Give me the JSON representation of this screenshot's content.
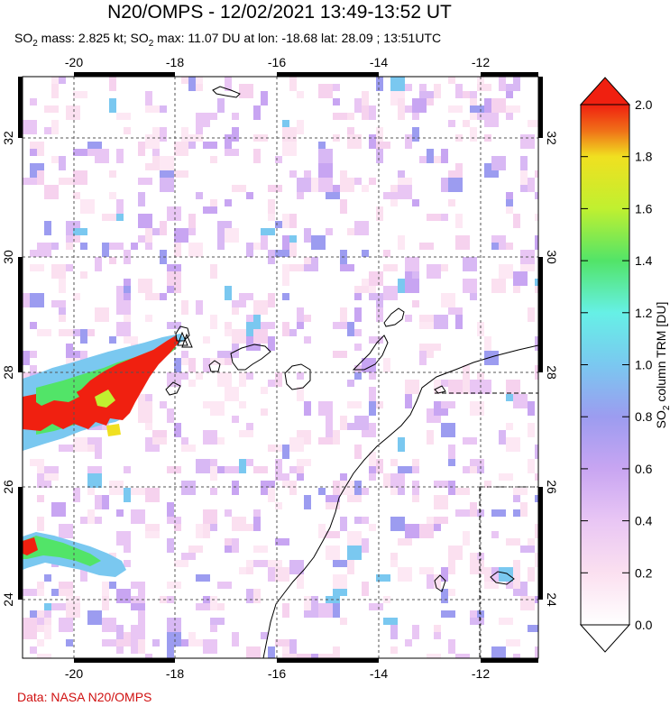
{
  "title": "N20/OMPS - 12/02/2021 13:49-13:52 UT",
  "subtitle": {
    "mass_prefix": "SO",
    "mass_sub": "2",
    "mass_text": " mass: 2.825 kt; SO",
    "max_sub": "2",
    "max_text": " max: 11.07 DU at lon: -18.68 lat: 28.09 ; 13:51UTC"
  },
  "credit": "Data: NASA N20/OMPS",
  "map": {
    "lon_ticks": [
      "-20",
      "-18",
      "-16",
      "-14",
      "-12"
    ],
    "lat_ticks": [
      "24",
      "26",
      "28",
      "30",
      "32"
    ],
    "marker": "volcano-triangle",
    "colors": {
      "coast": "#000000",
      "grid": "#555555"
    }
  },
  "colorbar": {
    "label_prefix": "SO",
    "label_sub": "2",
    "label_text": " column TRM [DU]",
    "ticks": [
      "0.0",
      "0.2",
      "0.4",
      "0.6",
      "0.8",
      "1.0",
      "1.2",
      "1.4",
      "1.6",
      "1.8",
      "2.0"
    ],
    "colors": [
      "#ffffff",
      "#fbe0f0",
      "#e9c6f4",
      "#c8a5f2",
      "#9c9cf0",
      "#7ac8f0",
      "#66f0e6",
      "#52e468",
      "#c0f030",
      "#f0e020",
      "#f07018",
      "#f02010"
    ]
  }
}
